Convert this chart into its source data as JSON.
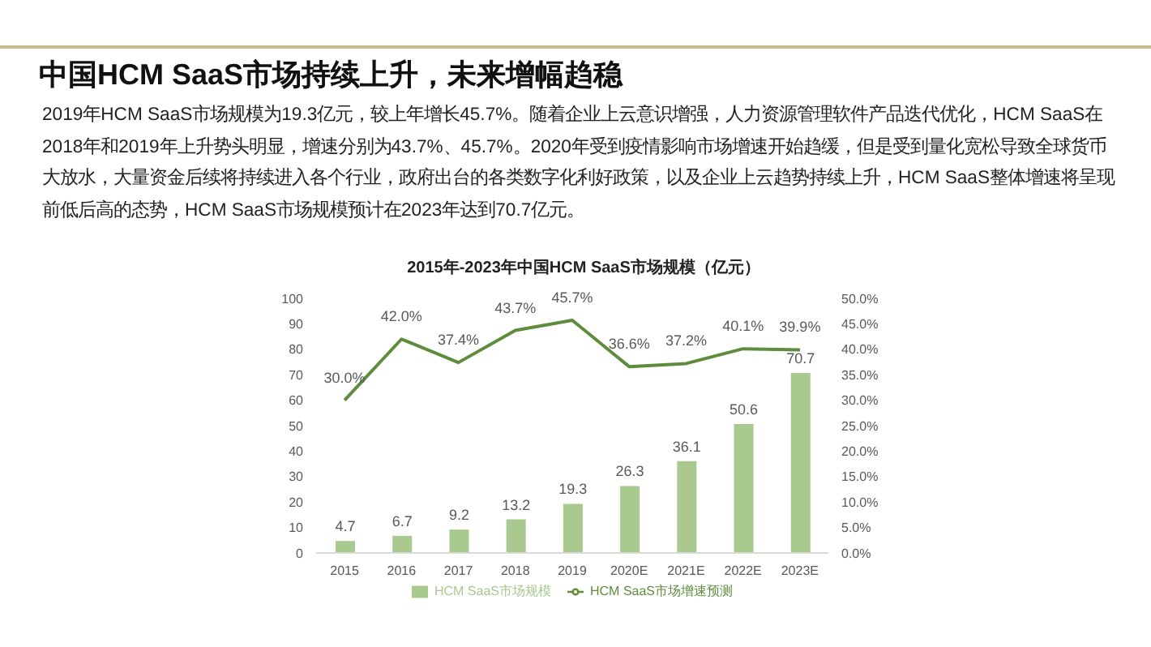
{
  "chart_data": {
    "type": "bar",
    "title": "中国HCM SaaS市场持续上升，未来增幅趋稳",
    "subtitle": "2019年HCM SaaS市场规模为19.3亿元，较上年增长45.7%。随着企业上云意识增强，人力资源管理软件产品迭代优化，HCM SaaS在2018年和2019年上升势头明显，增速分别为43.7%、45.7%。2020年受到疫情影响市场增速开始趋缓，但是受到量化宽松导致全球货币大放水，大量资金后续将持续进入各个行业，政府出台的各类数字化利好政策，以及企业上云趋势持续上升，HCM SaaS整体增速将呈现前低后高的态势，HCM SaaS市场规模预计在2023年达到70.7亿元。",
    "annotations": [
      "2015年-2023年中国HCM SaaS市场规模（亿元）"
    ],
    "categories": [
      "2015",
      "2016",
      "2017",
      "2018",
      "2019",
      "2020E",
      "2021E",
      "2022E",
      "2023E"
    ],
    "series": [
      {
        "name": "HCM SaaS市场规模",
        "color": "#a9c98e",
        "values": [
          4.7,
          6.7,
          9.2,
          13.2,
          19.3,
          26.3,
          36.1,
          50.6,
          70.7
        ],
        "value_labels": [
          "4.7",
          "6.7",
          "9.2",
          "13.2",
          "19.3",
          "26.3",
          "36.1",
          "50.6",
          "70.7"
        ]
      },
      {
        "name": "HCM SaaS市场增速预测",
        "type": "line",
        "axis": "y2",
        "color": "#5e8c3c",
        "values": [
          30.0,
          42.0,
          37.4,
          43.7,
          45.7,
          36.6,
          37.2,
          40.1,
          39.9
        ],
        "value_labels": [
          "30.0%",
          "42.0%",
          "37.4%",
          "43.7%",
          "45.7%",
          "36.6%",
          "37.2%",
          "40.1%",
          "39.9%"
        ]
      }
    ],
    "ylim": [
      0,
      100
    ],
    "yticks": [
      0,
      10,
      20,
      30,
      40,
      50,
      60,
      70,
      80,
      90,
      100
    ],
    "y2lim": [
      0,
      50
    ],
    "y2ticks": [
      {
        "value": 0,
        "label": "0.0%"
      },
      {
        "value": 5,
        "label": "5.0%"
      },
      {
        "value": 10,
        "label": "10.0%"
      },
      {
        "value": 15,
        "label": "15.0%"
      },
      {
        "value": 20,
        "label": "20.0%"
      },
      {
        "value": 25,
        "label": "25.0%"
      },
      {
        "value": 30,
        "label": "30.0%"
      },
      {
        "value": 35,
        "label": "35.0%"
      },
      {
        "value": 40,
        "label": "40.0%"
      },
      {
        "value": 45,
        "label": "45.0%"
      },
      {
        "value": 50,
        "label": "50.0%"
      }
    ],
    "legend": "bottom",
    "marker": "none"
  }
}
